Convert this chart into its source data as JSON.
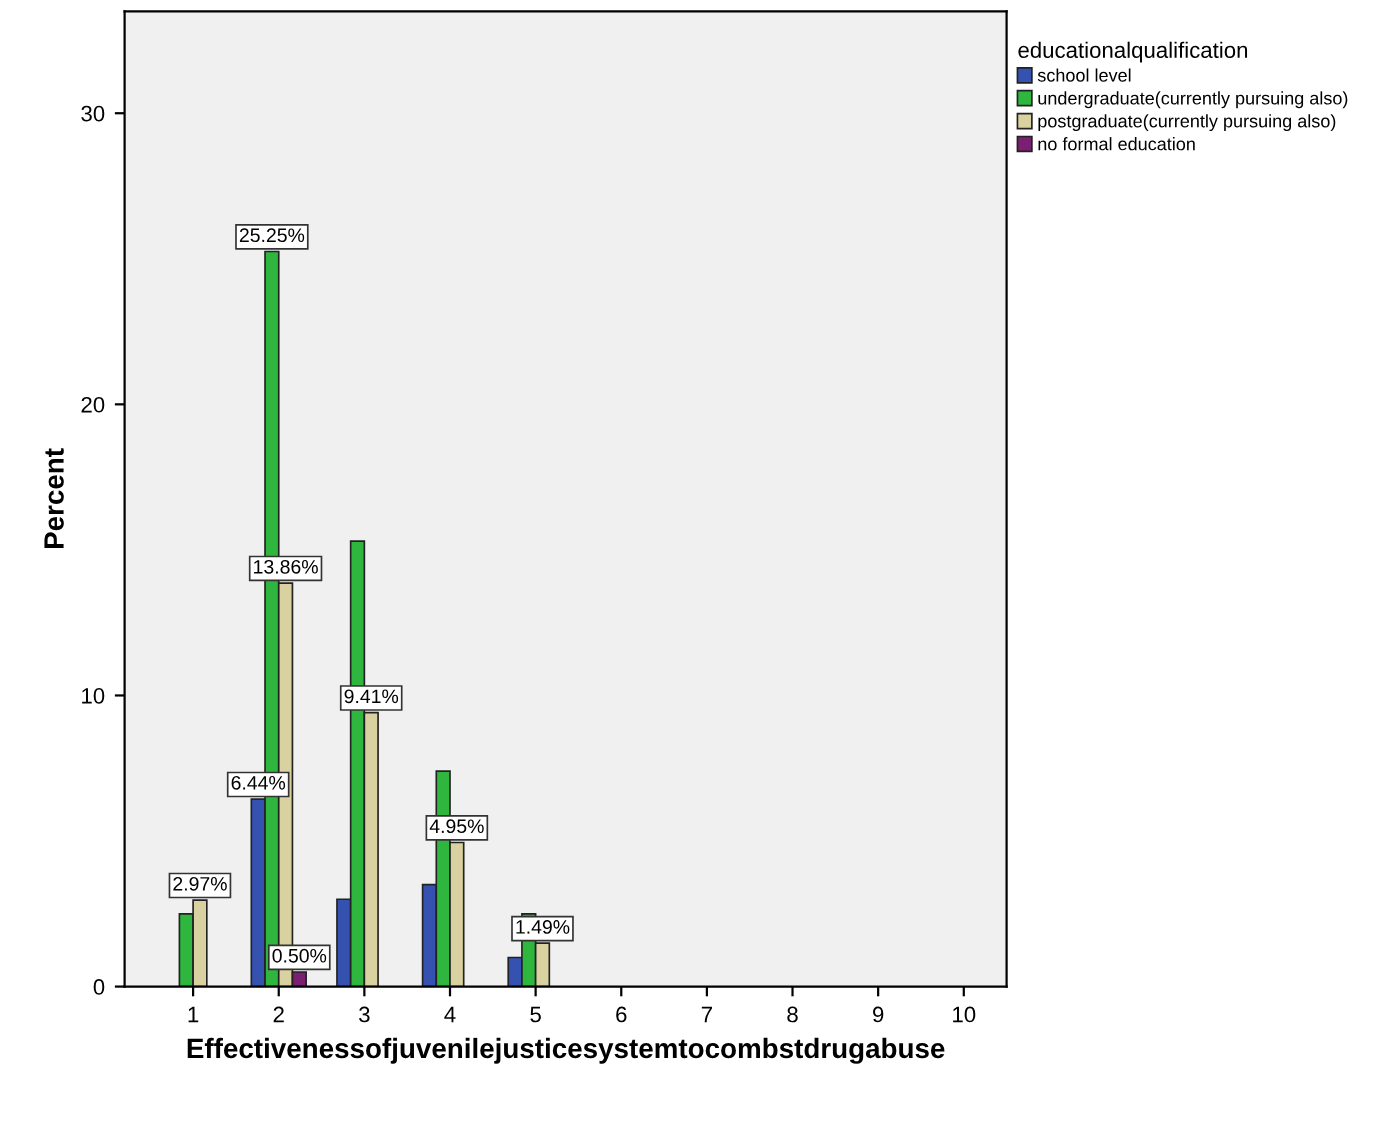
{
  "chart_data": {
    "type": "bar",
    "xlabel": "Effectivenessofjuvenilejusticesystemtocombstdrugabuse",
    "ylabel": "Percent",
    "legend_title": "educationalqualification",
    "categories": [
      "1",
      "2",
      "3",
      "4",
      "5",
      "6",
      "7",
      "8",
      "9",
      "10"
    ],
    "series": [
      {
        "name": "school level",
        "color": "#3552b0",
        "values": [
          null,
          6.44,
          3.0,
          3.5,
          1.0,
          null,
          null,
          null,
          null,
          null
        ],
        "value_labels": [
          null,
          "6.44%",
          null,
          null,
          null,
          null,
          null,
          null,
          null,
          null
        ]
      },
      {
        "name": "undergraduate(currently pursuing also)",
        "color": "#2fb63f",
        "values": [
          2.5,
          25.25,
          15.3,
          7.4,
          2.5,
          null,
          null,
          null,
          null,
          null
        ],
        "value_labels": [
          null,
          "25.25%",
          null,
          null,
          null,
          null,
          null,
          null,
          null,
          null
        ]
      },
      {
        "name": "postgraduate(currently pursuing also)",
        "color": "#d9d1a0",
        "values": [
          2.97,
          13.86,
          9.41,
          4.95,
          1.49,
          null,
          null,
          null,
          null,
          null
        ],
        "value_labels": [
          "2.97%",
          "13.86%",
          "9.41%",
          "4.95%",
          "1.49%",
          null,
          null,
          null,
          null,
          null
        ]
      },
      {
        "name": "no formal education",
        "color": "#7b1f72",
        "values": [
          null,
          0.5,
          null,
          null,
          null,
          null,
          null,
          null,
          null,
          null
        ],
        "value_labels": [
          null,
          "0.50%",
          null,
          null,
          null,
          null,
          null,
          null,
          null,
          null
        ]
      }
    ],
    "ylim": [
      0,
      33.5
    ],
    "yticks": [
      0,
      10,
      20,
      30
    ],
    "grid": false,
    "legend": "top right"
  }
}
